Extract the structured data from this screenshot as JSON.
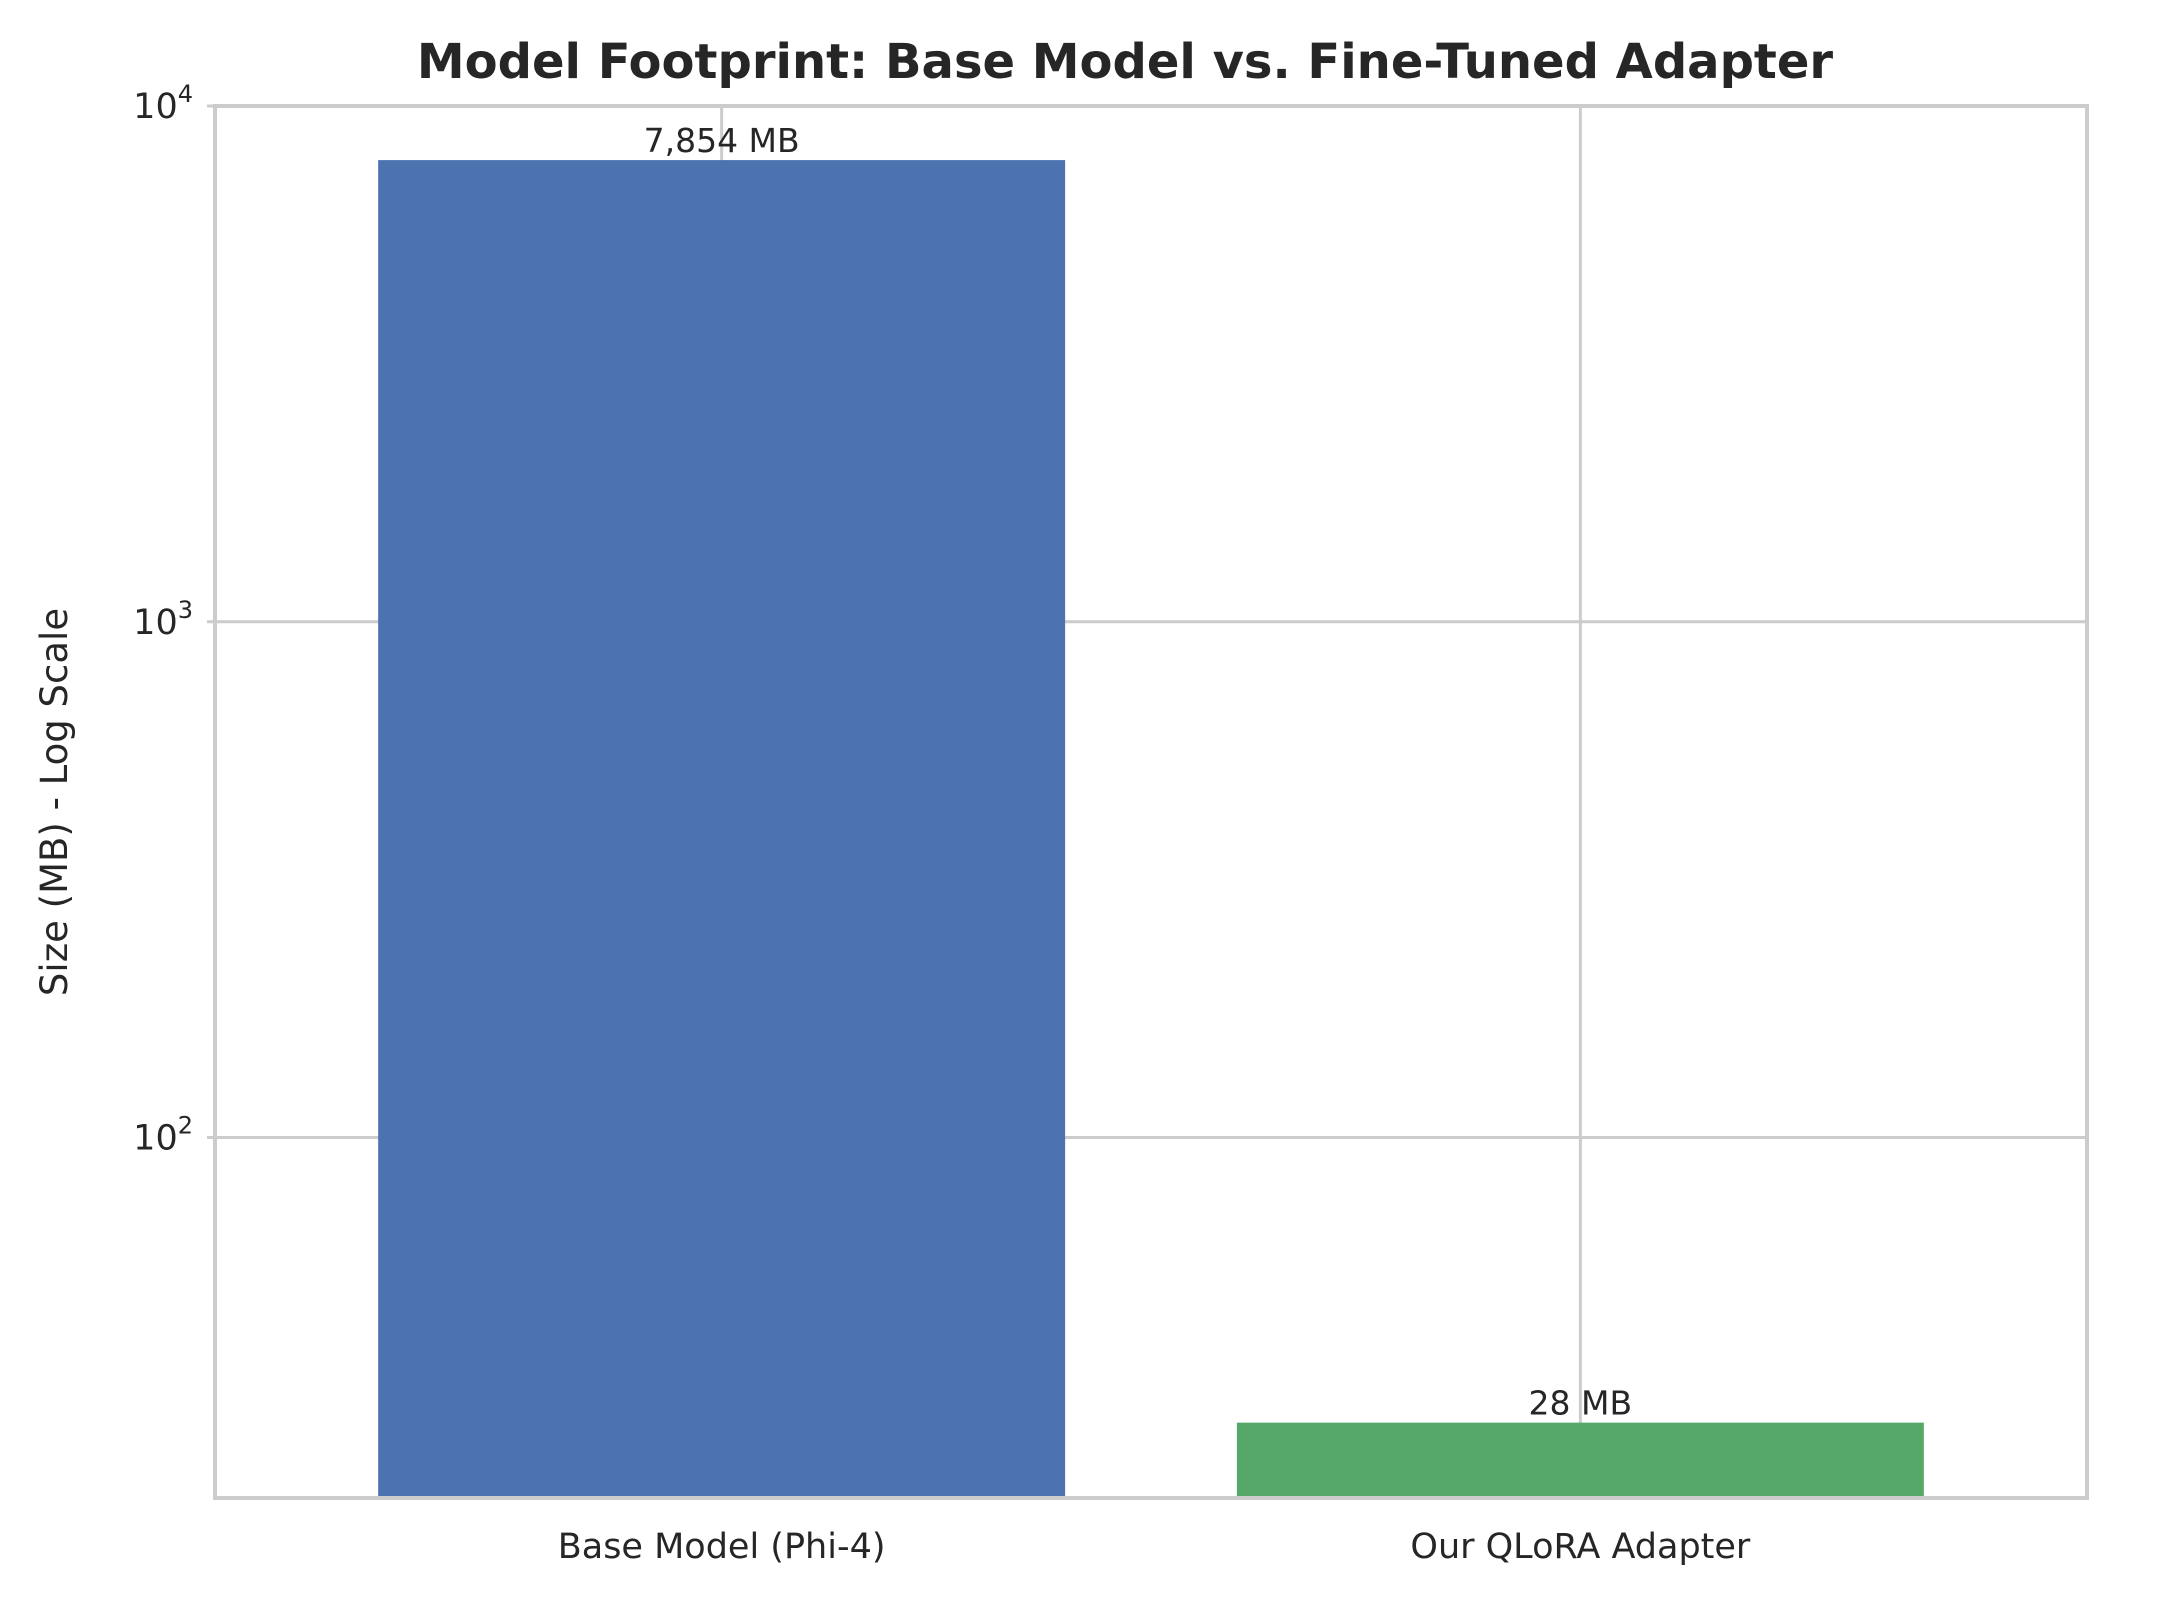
{
  "chart_data": {
    "type": "bar",
    "title": "Model Footprint: Base Model vs. Fine-Tuned Adapter",
    "ylabel": "Size (MB) - Log Scale",
    "xlabel": "",
    "yscale": "log",
    "ylim": [
      20,
      10000
    ],
    "grid": true,
    "categories": [
      "Base Model (Phi-4)",
      "Our QLoRA Adapter"
    ],
    "values": [
      7854,
      28
    ],
    "data_labels": [
      "7,854 MB",
      "28 MB"
    ],
    "colors": [
      "#4c72b0",
      "#55a868"
    ],
    "y_ticks": [
      {
        "value": 100,
        "base": "10",
        "exp": "2"
      },
      {
        "value": 1000,
        "base": "10",
        "exp": "3"
      },
      {
        "value": 10000,
        "base": "10",
        "exp": "4"
      }
    ]
  }
}
